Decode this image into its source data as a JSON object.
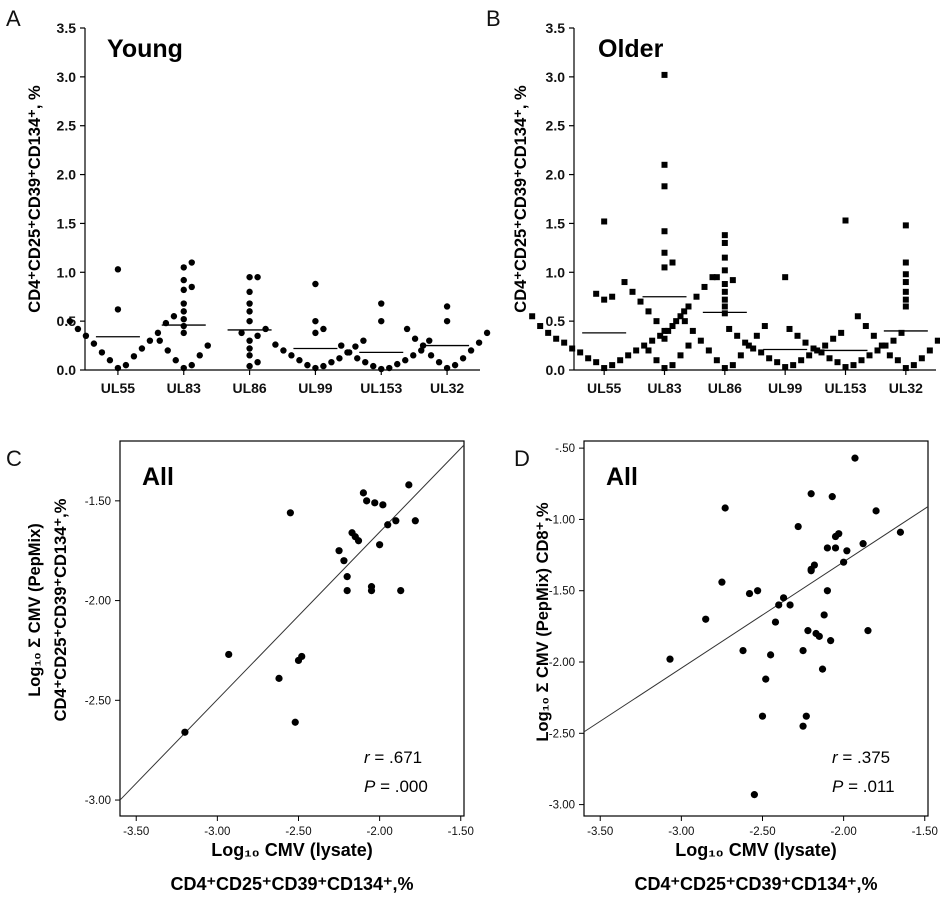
{
  "chart_data": [
    {
      "panel": "A",
      "type": "scatter",
      "title": "Young",
      "ylabel": "CD4⁺CD25⁺CD39⁺CD134⁺, %",
      "xlabel": "",
      "ylim": [
        0,
        3.5
      ],
      "yticks": [
        0.0,
        0.5,
        1.0,
        1.5,
        2.0,
        2.5,
        3.0,
        3.5
      ],
      "categories": [
        "UL55",
        "UL83",
        "UL86",
        "UL99",
        "UL153",
        "UL32"
      ],
      "marker": "circle",
      "points": [
        [
          1.03,
          0.62,
          0.55,
          0.5,
          0.48,
          0.42,
          0.38,
          0.35,
          0.3,
          0.27,
          0.22,
          0.18,
          0.14,
          0.1,
          0.05,
          0.02
        ],
        [
          1.1,
          1.05,
          0.92,
          0.85,
          0.82,
          0.68,
          0.6,
          0.52,
          0.45,
          0.38,
          0.3,
          0.25,
          0.2,
          0.15,
          0.1,
          0.05,
          0.02
        ],
        [
          0.95,
          0.95,
          0.8,
          0.68,
          0.6,
          0.5,
          0.42,
          0.38,
          0.35,
          0.3,
          0.22,
          0.15,
          0.08,
          0.04
        ],
        [
          0.88,
          0.5,
          0.42,
          0.38,
          0.3,
          0.26,
          0.24,
          0.2,
          0.18,
          0.15,
          0.12,
          0.1,
          0.08,
          0.05,
          0.04,
          0.02
        ],
        [
          0.68,
          0.5,
          0.3,
          0.25,
          0.2,
          0.18,
          0.15,
          0.12,
          0.1,
          0.08,
          0.06,
          0.04,
          0.02,
          0.01
        ],
        [
          0.65,
          0.5,
          0.42,
          0.38,
          0.32,
          0.28,
          0.25,
          0.2,
          0.15,
          0.12,
          0.08,
          0.05,
          0.02
        ]
      ],
      "medians": [
        0.34,
        0.46,
        0.41,
        0.22,
        0.18,
        0.25
      ]
    },
    {
      "panel": "B",
      "type": "scatter",
      "title": "Older",
      "ylabel": "CD4⁺CD25⁺CD39⁺CD134⁺, %",
      "xlabel": "",
      "ylim": [
        0,
        3.5
      ],
      "yticks": [
        0.0,
        0.5,
        1.0,
        1.5,
        2.0,
        2.5,
        3.0,
        3.5
      ],
      "categories": [
        "UL55",
        "UL83",
        "UL86",
        "UL99",
        "UL153",
        "UL32"
      ],
      "marker": "square",
      "points": [
        [
          1.52,
          0.78,
          0.75,
          0.72,
          0.6,
          0.55,
          0.5,
          0.45,
          0.4,
          0.38,
          0.35,
          0.32,
          0.3,
          0.28,
          0.25,
          0.22,
          0.2,
          0.18,
          0.15,
          0.12,
          0.1,
          0.08,
          0.05,
          0.02
        ],
        [
          3.02,
          2.1,
          1.88,
          1.42,
          1.2,
          1.1,
          1.05,
          0.95,
          0.9,
          0.85,
          0.8,
          0.75,
          0.7,
          0.65,
          0.6,
          0.55,
          0.5,
          0.45,
          0.4,
          0.32,
          0.25,
          0.2,
          0.15,
          0.1,
          0.05,
          0.02
        ],
        [
          1.38,
          1.3,
          1.15,
          1.02,
          0.95,
          0.92,
          0.88,
          0.8,
          0.72,
          0.65,
          0.58,
          0.5,
          0.45,
          0.4,
          0.35,
          0.3,
          0.25,
          0.2,
          0.15,
          0.1,
          0.05,
          0.02
        ],
        [
          0.95,
          0.42,
          0.38,
          0.35,
          0.32,
          0.28,
          0.25,
          0.22,
          0.2,
          0.18,
          0.15,
          0.12,
          0.1,
          0.08,
          0.05,
          0.03
        ],
        [
          1.53,
          0.42,
          0.38,
          0.35,
          0.3,
          0.28,
          0.25,
          0.22,
          0.2,
          0.18,
          0.15,
          0.12,
          0.1,
          0.08,
          0.05,
          0.03
        ],
        [
          1.48,
          1.1,
          0.98,
          0.9,
          0.8,
          0.72,
          0.65,
          0.55,
          0.5,
          0.45,
          0.4,
          0.35,
          0.3,
          0.25,
          0.2,
          0.15,
          0.12,
          0.1,
          0.05,
          0.02
        ]
      ],
      "medians": [
        0.38,
        0.75,
        0.59,
        0.21,
        0.2,
        0.4
      ]
    },
    {
      "panel": "C",
      "type": "scatter",
      "title": "All",
      "ylabel_line1": "Log₁₀ Σ CMV (PepMix)",
      "ylabel_line2": "CD4⁺CD25⁺CD39⁺CD134⁺,%",
      "xlabel_line1": "Log₁₀ CMV (lysate)",
      "xlabel_line2": "CD4⁺CD25⁺CD39⁺CD134⁺,%",
      "xlim": [
        -3.6,
        -1.48
      ],
      "ylim": [
        -3.08,
        -1.2
      ],
      "xticks": [
        "-3.50",
        "-3.00",
        "-2.50",
        "-2.00",
        "-1.50"
      ],
      "yticks": [
        "-1.50",
        "-2.00",
        "-2.50",
        "-3.00"
      ],
      "x": [
        -3.2,
        -2.93,
        -2.62,
        -2.55,
        -2.52,
        -2.5,
        -2.48,
        -2.25,
        -2.22,
        -2.2,
        -2.2,
        -2.17,
        -2.15,
        -2.13,
        -2.1,
        -2.08,
        -2.05,
        -2.05,
        -2.03,
        -2.0,
        -1.98,
        -1.95,
        -1.9,
        -1.87,
        -1.82,
        -1.78
      ],
      "y": [
        -2.66,
        -2.27,
        -2.39,
        -1.56,
        -2.61,
        -2.3,
        -2.28,
        -1.75,
        -1.8,
        -1.88,
        -1.95,
        -1.66,
        -1.68,
        -1.7,
        -1.46,
        -1.5,
        -1.93,
        -1.95,
        -1.51,
        -1.72,
        -1.52,
        -1.62,
        -1.6,
        -1.95,
        -1.42,
        -1.6
      ],
      "fit": {
        "x": [
          -3.6,
          -1.48
        ],
        "y": [
          -3.0,
          -1.22
        ]
      },
      "r": ".671",
      "P": ".000"
    },
    {
      "panel": "D",
      "type": "scatter",
      "title": "All",
      "ylabel_line1": "Log₁₀ Σ CMV (PepMix) CD8⁺,%",
      "xlabel_line1": "Log₁₀ CMV (lysate)",
      "xlabel_line2": "CD4⁺CD25⁺CD39⁺CD134⁺,%",
      "xlim": [
        -3.6,
        -1.48
      ],
      "ylim": [
        -3.08,
        -0.45
      ],
      "xticks": [
        "-3.50",
        "-3.00",
        "-2.50",
        "-2.00",
        "-1.50"
      ],
      "yticks": [
        "-.50",
        "-1.00",
        "-1.50",
        "-2.00",
        "-2.50",
        "-3.00"
      ],
      "x": [
        -3.07,
        -2.85,
        -2.75,
        -2.73,
        -2.62,
        -2.58,
        -2.55,
        -2.53,
        -2.5,
        -2.48,
        -2.45,
        -2.42,
        -2.4,
        -2.37,
        -2.33,
        -2.28,
        -2.25,
        -2.23,
        -2.22,
        -2.2,
        -2.2,
        -2.18,
        -2.17,
        -2.15,
        -2.13,
        -2.12,
        -2.1,
        -2.1,
        -2.08,
        -2.07,
        -2.05,
        -2.05,
        -2.03,
        -2.0,
        -1.98,
        -1.93,
        -1.88,
        -1.85,
        -1.8,
        -1.65,
        -2.2,
        -2.25
      ],
      "y": [
        -1.98,
        -1.7,
        -1.44,
        -0.92,
        -1.92,
        -1.52,
        -2.93,
        -1.5,
        -2.38,
        -2.12,
        -1.95,
        -1.72,
        -1.6,
        -1.55,
        -1.6,
        -1.05,
        -2.45,
        -2.38,
        -1.78,
        -0.82,
        -1.36,
        -1.32,
        -1.8,
        -1.82,
        -2.05,
        -1.67,
        -1.2,
        -1.5,
        -1.85,
        -0.84,
        -1.2,
        -1.12,
        -1.1,
        -1.3,
        -1.22,
        -0.57,
        -1.17,
        -1.78,
        -0.94,
        -1.09,
        -1.35,
        -1.92
      ],
      "fit": {
        "x": [
          -3.6,
          -1.48
        ],
        "y": [
          -2.49,
          -0.91
        ]
      },
      "r": ".375",
      "P": ".011"
    }
  ],
  "panel_letters": [
    "A",
    "B",
    "C",
    "D"
  ],
  "stat_labels": {
    "r": "r",
    "P": "P",
    "eq": " = "
  }
}
